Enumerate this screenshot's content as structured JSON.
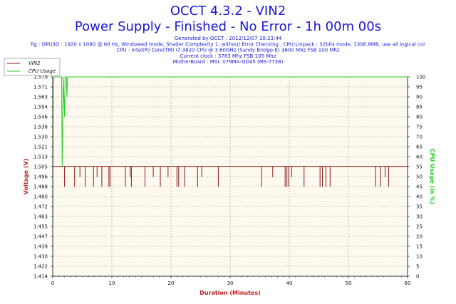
{
  "header": {
    "title": "OCCT 4.3.2 - VIN2",
    "subtitle": "Power Supply - Finished - No Error - 1h 00m 00s",
    "info_lines": [
      "Generated by OCCT : 2012/12/07 10:23:44",
      "fig : GPU3D : 1920 x 1080 @ 60 Hz, Windowed mode, Shader Complexity 1, without Error Checking ; CPU:Linpack : 32bits mode, 1306.8MB, use all logical cor",
      "CPU : Intel(R) Core(TM) i7-3820 CPU @ 3.60GHz (Sandy Bridge-E) 3600 Mhz FSB 100 Mhz",
      "Current clock : 3783 Mhz FSB 105 Mhz",
      "MotherBoard : MSI: X79MA-GD45 (MS-7738)"
    ]
  },
  "chart_data": {
    "type": "line",
    "xlabel": "Duration (Minutes)",
    "ylabel": "Voltage (V)",
    "y2label": "CPU Usage (in %)",
    "xlim": [
      0,
      60
    ],
    "ylim": [
      1.414,
      1.579
    ],
    "y2lim": [
      0,
      100
    ],
    "x_ticks": [
      "0",
      "10",
      "20",
      "30",
      "40",
      "50",
      "60"
    ],
    "y_ticks": [
      "1.414",
      "1.422",
      "1.430",
      "1.439",
      "1.447",
      "1.455",
      "1.463",
      "1.472",
      "1.480",
      "1.488",
      "1.496",
      "1.505",
      "1.513",
      "1.521",
      "1.530",
      "1.538",
      "1.546",
      "1.554",
      "1.563",
      "1.571",
      "1.579"
    ],
    "y2_ticks": [
      "0",
      "5",
      "10",
      "15",
      "20",
      "25",
      "30",
      "35",
      "40",
      "45",
      "50",
      "55",
      "60",
      "65",
      "70",
      "75",
      "80",
      "85",
      "90",
      "95",
      "100"
    ],
    "grid": true,
    "legend_position": "top-left",
    "colors": {
      "vin2": "#8b1a1a",
      "cpu": "#22cc22",
      "plot_bg": "#fdf9ef",
      "title": "#1818d8"
    },
    "series": [
      {
        "name": "VIN2",
        "axis": "left",
        "baseline": 1.505,
        "dips": [
          {
            "x": 2.0,
            "v": 1.488
          },
          {
            "x": 3.7,
            "v": 1.488
          },
          {
            "x": 4.6,
            "v": 1.496
          },
          {
            "x": 5.5,
            "v": 1.488
          },
          {
            "x": 6.9,
            "v": 1.488
          },
          {
            "x": 7.5,
            "v": 1.496
          },
          {
            "x": 8.3,
            "v": 1.488
          },
          {
            "x": 9.5,
            "v": 1.488
          },
          {
            "x": 9.7,
            "v": 1.488
          },
          {
            "x": 12.3,
            "v": 1.488
          },
          {
            "x": 13.1,
            "v": 1.496
          },
          {
            "x": 13.3,
            "v": 1.488
          },
          {
            "x": 15.6,
            "v": 1.488
          },
          {
            "x": 17.0,
            "v": 1.496
          },
          {
            "x": 18.2,
            "v": 1.488
          },
          {
            "x": 19.5,
            "v": 1.496
          },
          {
            "x": 21.0,
            "v": 1.488
          },
          {
            "x": 21.3,
            "v": 1.488
          },
          {
            "x": 22.3,
            "v": 1.488
          },
          {
            "x": 24.5,
            "v": 1.488
          },
          {
            "x": 25.2,
            "v": 1.496
          },
          {
            "x": 28.0,
            "v": 1.488
          },
          {
            "x": 35.3,
            "v": 1.488
          },
          {
            "x": 37.2,
            "v": 1.496
          },
          {
            "x": 39.3,
            "v": 1.488
          },
          {
            "x": 39.6,
            "v": 1.488
          },
          {
            "x": 39.9,
            "v": 1.488
          },
          {
            "x": 40.4,
            "v": 1.496
          },
          {
            "x": 42.5,
            "v": 1.488
          },
          {
            "x": 45.2,
            "v": 1.488
          },
          {
            "x": 45.6,
            "v": 1.488
          },
          {
            "x": 46.2,
            "v": 1.488
          },
          {
            "x": 46.9,
            "v": 1.488
          },
          {
            "x": 54.6,
            "v": 1.488
          },
          {
            "x": 55.4,
            "v": 1.488
          },
          {
            "x": 56.2,
            "v": 1.496
          },
          {
            "x": 56.8,
            "v": 1.488
          }
        ]
      },
      {
        "name": "CPU Usage",
        "axis": "right",
        "points": [
          [
            0,
            0
          ],
          [
            0.1,
            100
          ],
          [
            1.5,
            100
          ],
          [
            1.6,
            55
          ],
          [
            1.8,
            100
          ],
          [
            2.0,
            80
          ],
          [
            2.1,
            100
          ],
          [
            2.3,
            100
          ],
          [
            2.4,
            90
          ],
          [
            2.5,
            100
          ],
          [
            60,
            100
          ]
        ]
      }
    ]
  }
}
